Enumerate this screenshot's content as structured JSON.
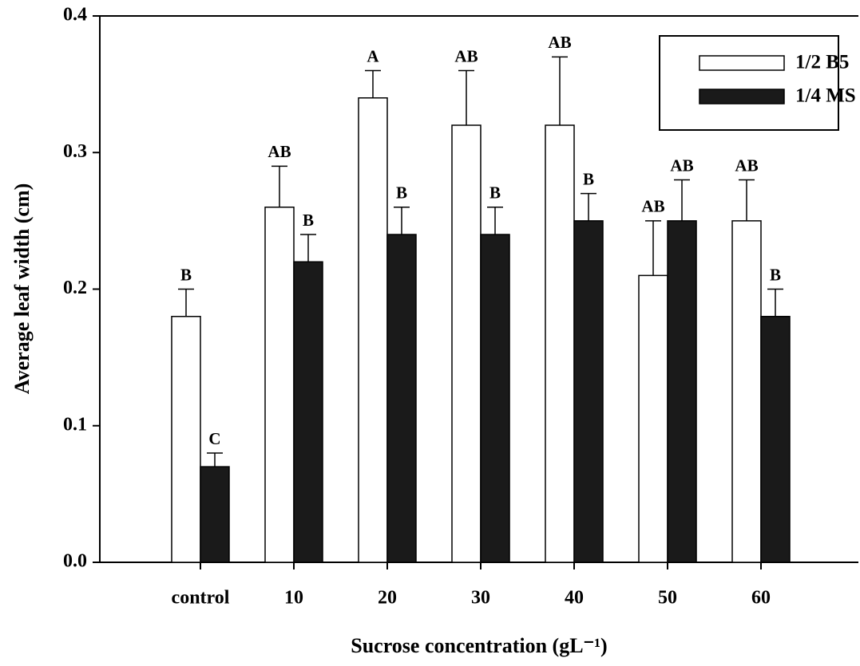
{
  "chart_data": {
    "type": "bar",
    "x_label": "Sucrose concentration (gL⁻¹)",
    "y_label": "Average leaf width (cm)",
    "categories": [
      "control",
      "10",
      "20",
      "30",
      "40",
      "50",
      "60"
    ],
    "series": [
      {
        "name": "1/2 B5",
        "color": "#ffffff",
        "edge_color": "#000000",
        "values": [
          0.18,
          0.26,
          0.34,
          0.32,
          0.32,
          0.21,
          0.25
        ],
        "errors": [
          0.02,
          0.03,
          0.02,
          0.04,
          0.05,
          0.04,
          0.03
        ],
        "letters": [
          "B",
          "AB",
          "A",
          "AB",
          "AB",
          "AB",
          "AB"
        ]
      },
      {
        "name": "1/4 MS",
        "color": "#1a1a1a",
        "edge_color": "#000000",
        "values": [
          0.07,
          0.22,
          0.24,
          0.24,
          0.25,
          0.25,
          0.18
        ],
        "errors": [
          0.01,
          0.02,
          0.02,
          0.02,
          0.02,
          0.03,
          0.02
        ],
        "letters": [
          "C",
          "B",
          "B",
          "B",
          "B",
          "AB",
          "B"
        ]
      }
    ],
    "ylim": [
      0,
      0.4
    ],
    "yticks": [
      {
        "value": 0,
        "label": "0.0"
      },
      0.1,
      0.2,
      0.3,
      0.4
    ],
    "grid": false,
    "legend": "upper right"
  }
}
